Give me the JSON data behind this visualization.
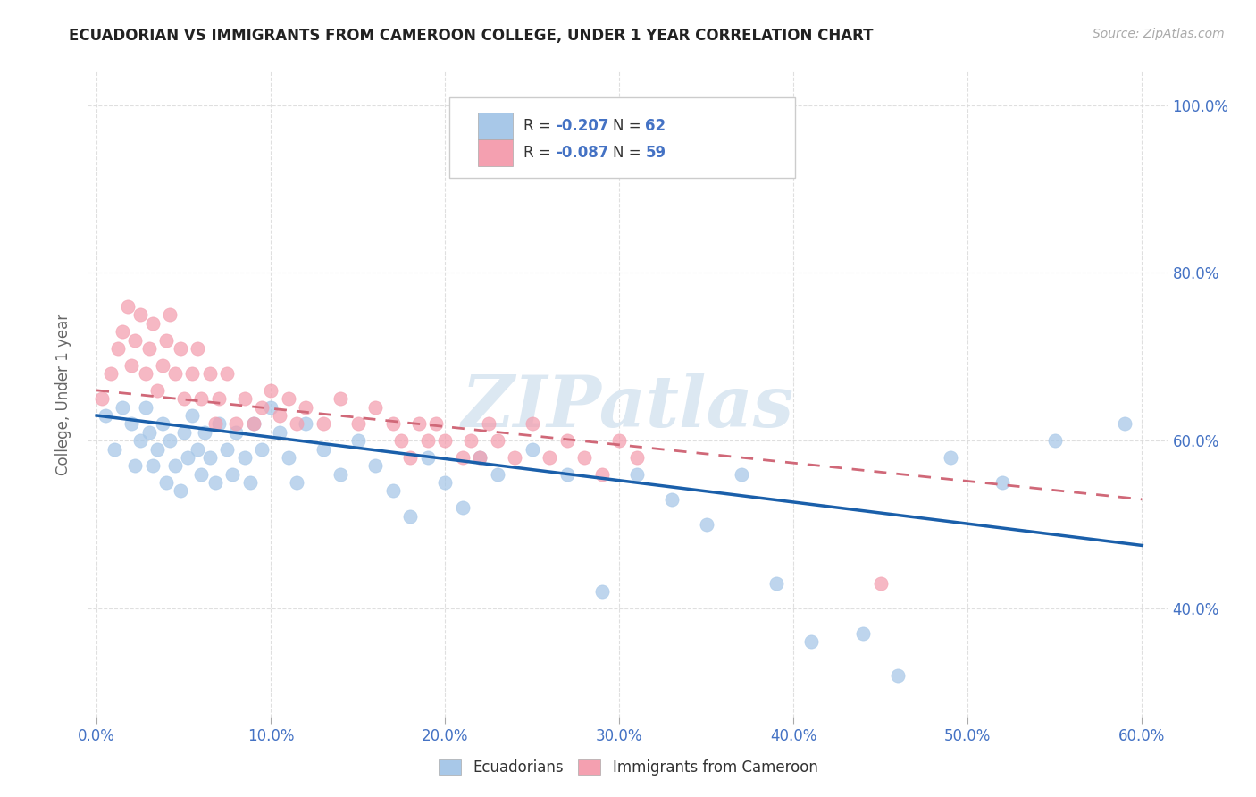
{
  "title": "ECUADORIAN VS IMMIGRANTS FROM CAMEROON COLLEGE, UNDER 1 YEAR CORRELATION CHART",
  "source_text": "Source: ZipAtlas.com",
  "ylabel_label": "College, Under 1 year",
  "xlim": [
    -0.005,
    0.615
  ],
  "ylim": [
    0.27,
    1.04
  ],
  "blue_R": -0.207,
  "blue_N": 62,
  "pink_R": -0.087,
  "pink_N": 59,
  "blue_color": "#a8c8e8",
  "pink_color": "#f4a0b0",
  "blue_line_color": "#1a5faa",
  "pink_line_color": "#d06878",
  "watermark": "ZIPatlas",
  "watermark_color": "#dce8f2",
  "blue_scatter_x": [
    0.005,
    0.01,
    0.015,
    0.02,
    0.022,
    0.025,
    0.028,
    0.03,
    0.032,
    0.035,
    0.038,
    0.04,
    0.042,
    0.045,
    0.048,
    0.05,
    0.052,
    0.055,
    0.058,
    0.06,
    0.062,
    0.065,
    0.068,
    0.07,
    0.075,
    0.078,
    0.08,
    0.085,
    0.088,
    0.09,
    0.095,
    0.1,
    0.105,
    0.11,
    0.115,
    0.12,
    0.13,
    0.14,
    0.15,
    0.16,
    0.17,
    0.18,
    0.19,
    0.2,
    0.21,
    0.22,
    0.23,
    0.25,
    0.27,
    0.29,
    0.31,
    0.33,
    0.35,
    0.37,
    0.39,
    0.41,
    0.44,
    0.46,
    0.49,
    0.52,
    0.55,
    0.59
  ],
  "blue_scatter_y": [
    0.63,
    0.59,
    0.64,
    0.62,
    0.57,
    0.6,
    0.64,
    0.61,
    0.57,
    0.59,
    0.62,
    0.55,
    0.6,
    0.57,
    0.54,
    0.61,
    0.58,
    0.63,
    0.59,
    0.56,
    0.61,
    0.58,
    0.55,
    0.62,
    0.59,
    0.56,
    0.61,
    0.58,
    0.55,
    0.62,
    0.59,
    0.64,
    0.61,
    0.58,
    0.55,
    0.62,
    0.59,
    0.56,
    0.6,
    0.57,
    0.54,
    0.51,
    0.58,
    0.55,
    0.52,
    0.58,
    0.56,
    0.59,
    0.56,
    0.42,
    0.56,
    0.53,
    0.5,
    0.56,
    0.43,
    0.36,
    0.37,
    0.32,
    0.58,
    0.55,
    0.6,
    0.62
  ],
  "pink_scatter_x": [
    0.003,
    0.008,
    0.012,
    0.015,
    0.018,
    0.02,
    0.022,
    0.025,
    0.028,
    0.03,
    0.032,
    0.035,
    0.038,
    0.04,
    0.042,
    0.045,
    0.048,
    0.05,
    0.055,
    0.058,
    0.06,
    0.065,
    0.068,
    0.07,
    0.075,
    0.08,
    0.085,
    0.09,
    0.095,
    0.1,
    0.105,
    0.11,
    0.115,
    0.12,
    0.13,
    0.14,
    0.15,
    0.16,
    0.17,
    0.175,
    0.18,
    0.185,
    0.19,
    0.195,
    0.2,
    0.21,
    0.215,
    0.22,
    0.225,
    0.23,
    0.24,
    0.25,
    0.26,
    0.27,
    0.28,
    0.29,
    0.3,
    0.31,
    0.45
  ],
  "pink_scatter_y": [
    0.65,
    0.68,
    0.71,
    0.73,
    0.76,
    0.69,
    0.72,
    0.75,
    0.68,
    0.71,
    0.74,
    0.66,
    0.69,
    0.72,
    0.75,
    0.68,
    0.71,
    0.65,
    0.68,
    0.71,
    0.65,
    0.68,
    0.62,
    0.65,
    0.68,
    0.62,
    0.65,
    0.62,
    0.64,
    0.66,
    0.63,
    0.65,
    0.62,
    0.64,
    0.62,
    0.65,
    0.62,
    0.64,
    0.62,
    0.6,
    0.58,
    0.62,
    0.6,
    0.62,
    0.6,
    0.58,
    0.6,
    0.58,
    0.62,
    0.6,
    0.58,
    0.62,
    0.58,
    0.6,
    0.58,
    0.56,
    0.6,
    0.58,
    0.43
  ],
  "blue_line_x0": 0.0,
  "blue_line_x1": 0.6,
  "blue_line_y0": 0.63,
  "blue_line_y1": 0.475,
  "pink_line_x0": 0.0,
  "pink_line_x1": 0.6,
  "pink_line_y0": 0.66,
  "pink_line_y1": 0.53,
  "xtick_vals": [
    0.0,
    0.1,
    0.2,
    0.3,
    0.4,
    0.5,
    0.6
  ],
  "ytick_vals": [
    0.4,
    0.6,
    0.8,
    1.0
  ]
}
